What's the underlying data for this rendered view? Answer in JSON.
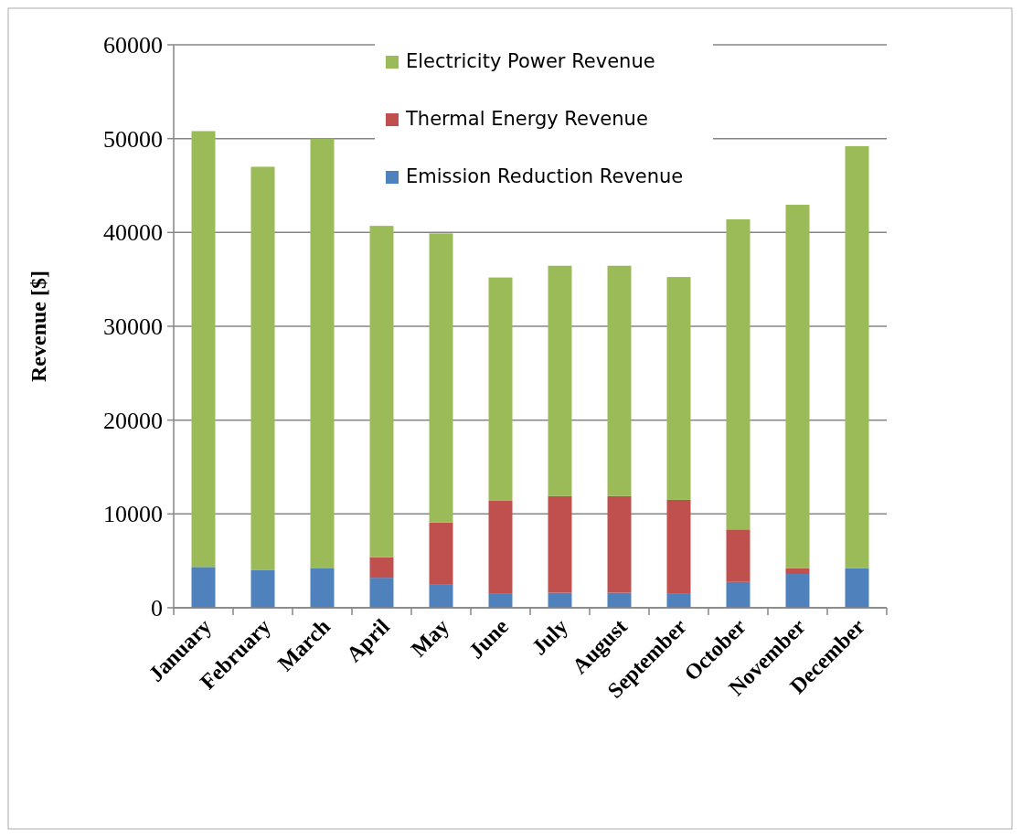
{
  "chart_data": {
    "type": "bar",
    "stacked": true,
    "ylabel": "Revenue [$]",
    "categories": [
      "January",
      "February",
      "March",
      "April",
      "May",
      "June",
      "July",
      "August",
      "September",
      "October",
      "November",
      "December"
    ],
    "series": [
      {
        "name": "Emission Reduction Revenue",
        "color": "#4f81bd",
        "values": [
          4350,
          4000,
          4250,
          3200,
          2450,
          1550,
          1600,
          1600,
          1550,
          2750,
          3600,
          4200
        ]
      },
      {
        "name": "Thermal Energy Revenue",
        "color": "#c0504d",
        "values": [
          0,
          0,
          0,
          2200,
          6650,
          9900,
          10300,
          10300,
          9950,
          5600,
          600,
          0
        ]
      },
      {
        "name": "Electricity Power Revenue",
        "color": "#9bbb59",
        "values": [
          46450,
          43000,
          45750,
          35300,
          30800,
          23750,
          24550,
          24550,
          23750,
          33050,
          38750,
          45000
        ]
      }
    ],
    "ylim": [
      0,
      60000
    ],
    "yticks": [
      0,
      10000,
      20000,
      30000,
      40000,
      50000,
      60000
    ],
    "grid": "y",
    "legend": "top"
  }
}
